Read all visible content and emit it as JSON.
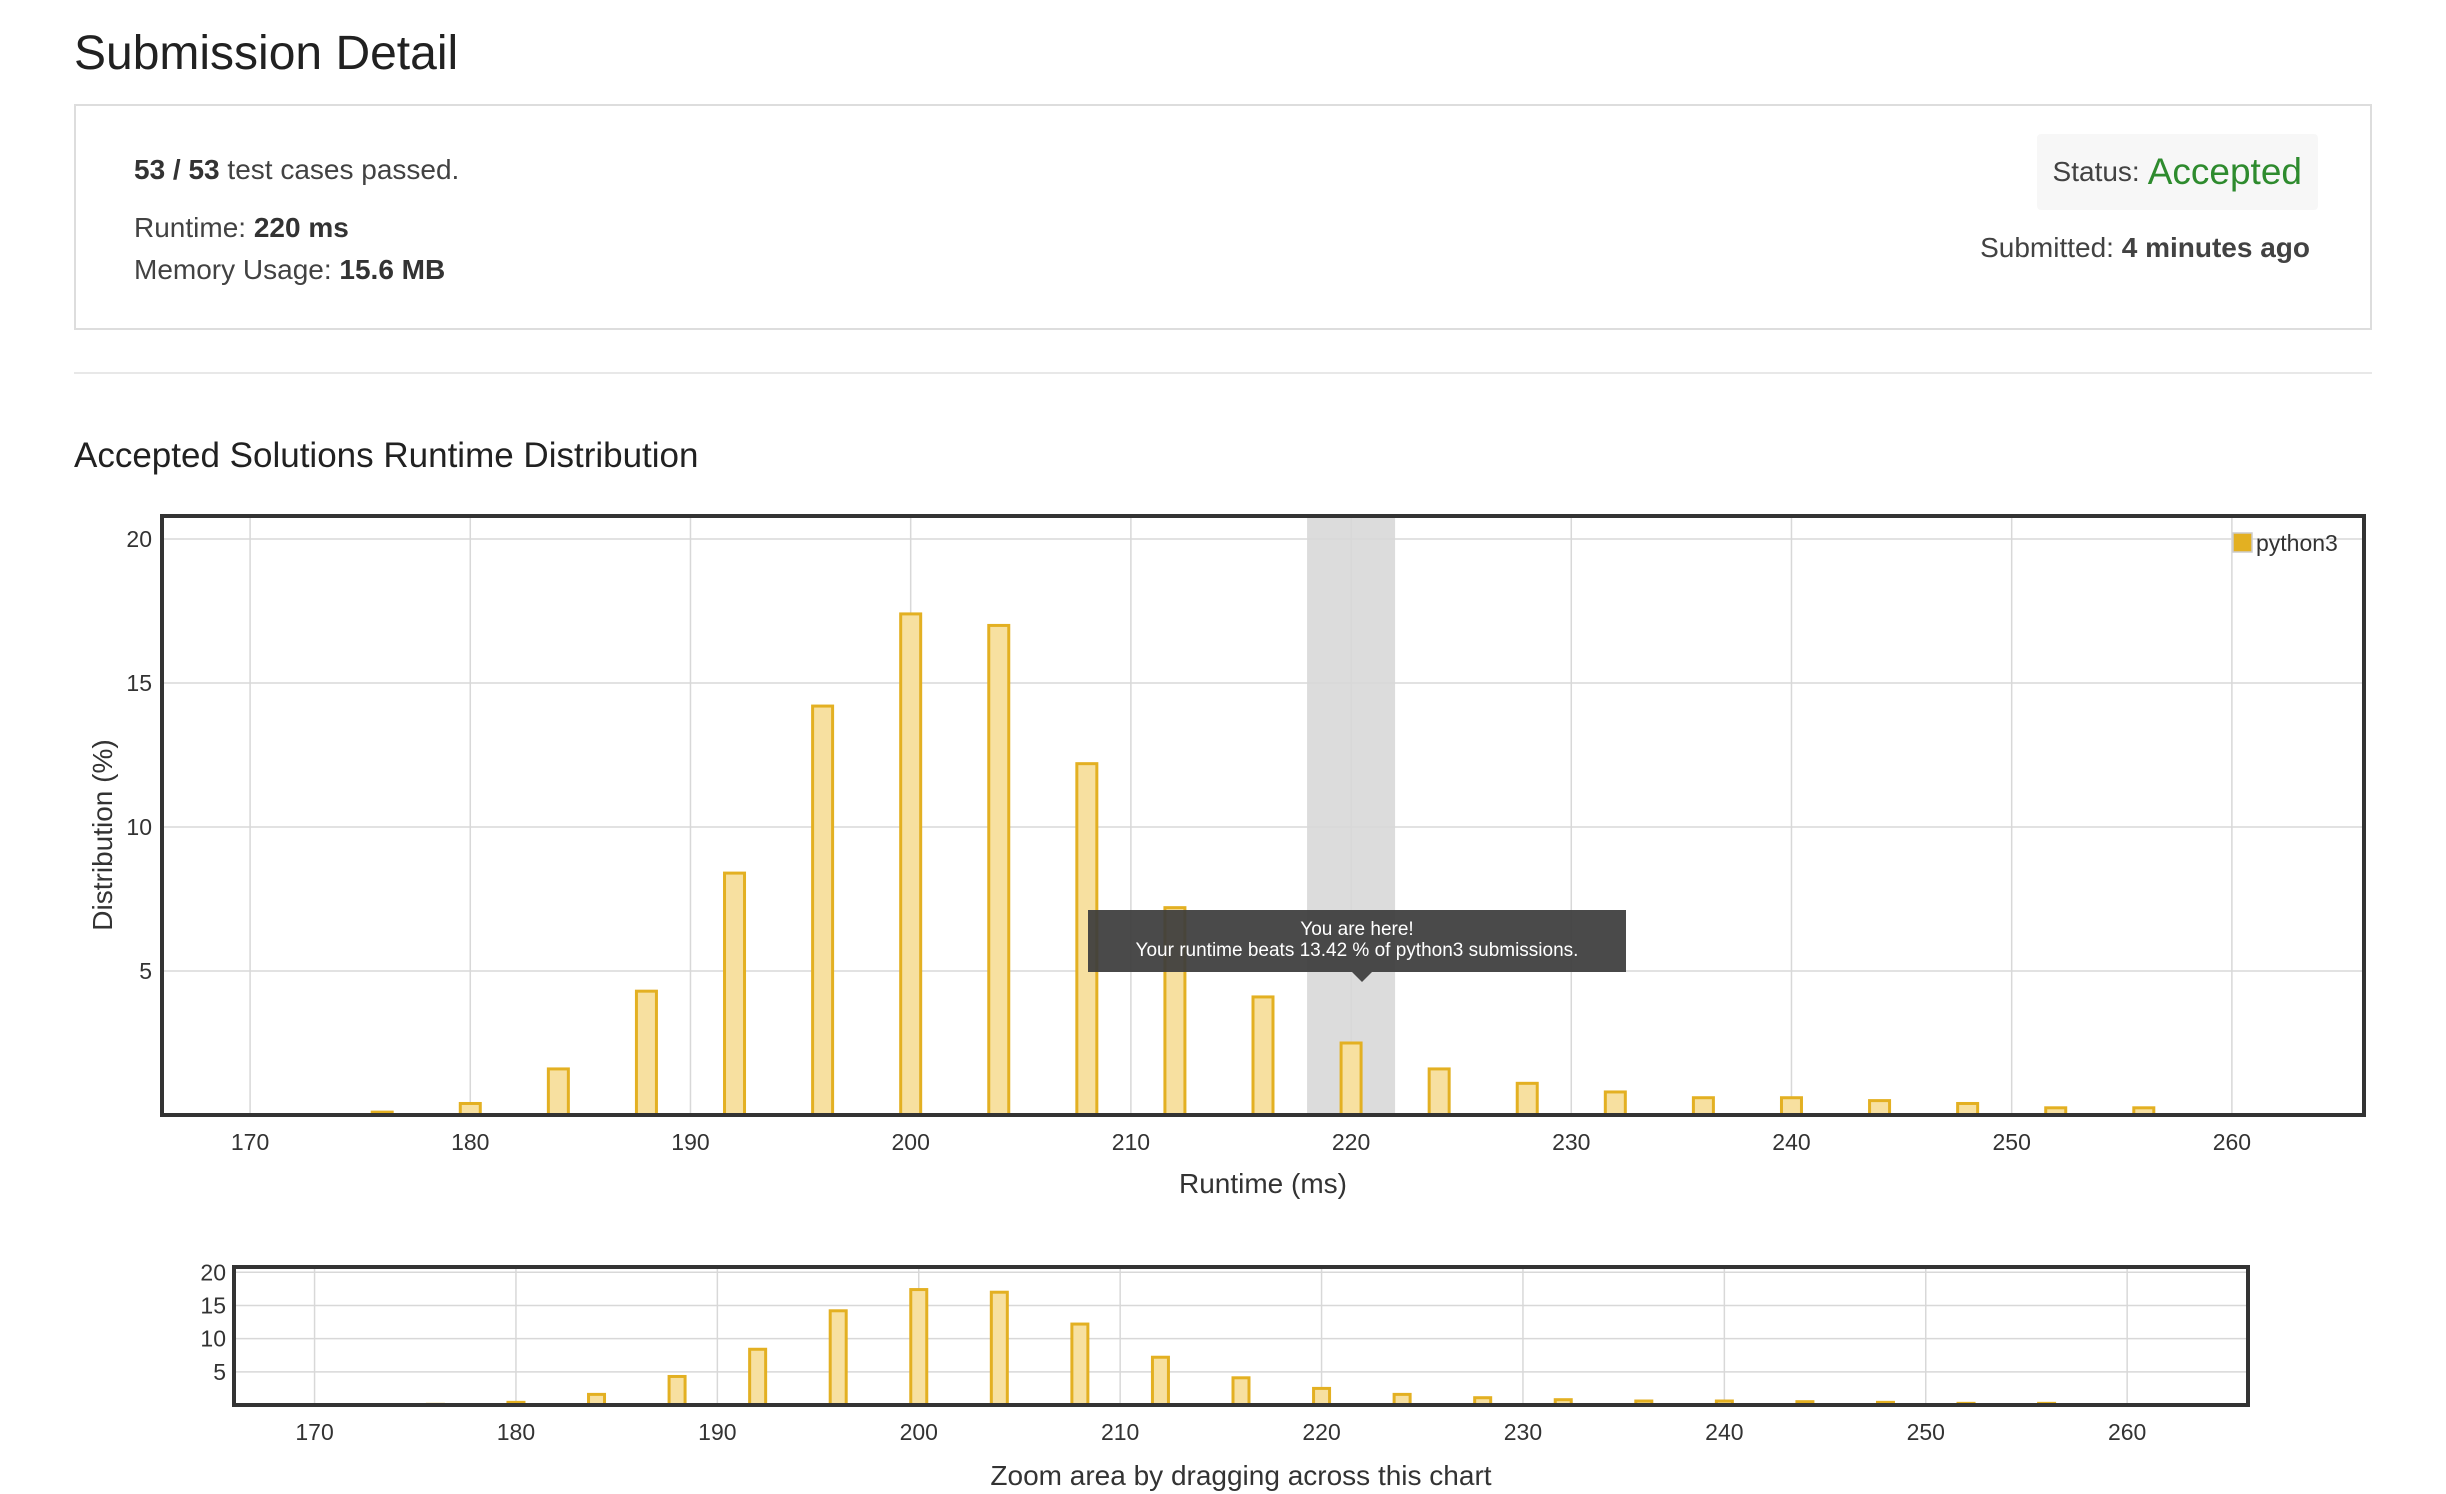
{
  "header": {
    "title": "Submission Detail"
  },
  "result": {
    "passed": "53 / 53",
    "passed_suffix": "test cases passed.",
    "runtime_label": "Runtime:",
    "runtime_value": "220 ms",
    "memory_label": "Memory Usage:",
    "memory_value": "15.6 MB",
    "status_label": "Status:",
    "status_value": "Accepted",
    "submitted_label": "Submitted:",
    "submitted_value": "4 minutes ago"
  },
  "section": {
    "title": "Accepted Solutions Runtime Distribution"
  },
  "tooltip": {
    "line1": "You are here!",
    "line2": "Your runtime beats 13.42 % of python3 submissions."
  },
  "zoom_hint": "Zoom area by dragging across this chart",
  "colors": {
    "bar_fill": "#f7e0a0",
    "bar_stroke": "#e3b022",
    "accepted": "#2e8b2e",
    "highlight": "#dcdcdc"
  },
  "chart_data": [
    {
      "type": "bar",
      "series": [
        {
          "name": "python3",
          "x": [
            176,
            180,
            184,
            188,
            192,
            196,
            200,
            204,
            208,
            212,
            216,
            220,
            224,
            228,
            232,
            236,
            240,
            244,
            248,
            252,
            256
          ],
          "values": [
            0.1,
            0.4,
            1.6,
            4.3,
            8.4,
            14.2,
            17.4,
            17.0,
            12.2,
            7.2,
            4.1,
            2.5,
            1.6,
            1.1,
            0.8,
            0.6,
            0.6,
            0.5,
            0.4,
            0.25,
            0.25
          ]
        }
      ],
      "xlabel": "Runtime (ms)",
      "ylabel": "Distribution (%)",
      "xlim": [
        166,
        266
      ],
      "ylim": [
        0,
        20.8
      ],
      "xticks": [
        170,
        180,
        190,
        200,
        210,
        220,
        230,
        240,
        250,
        260
      ],
      "yticks": [
        5,
        10,
        15,
        20
      ],
      "highlight_x": 220,
      "legend": "top-right",
      "grid": true
    },
    {
      "type": "bar",
      "series": [
        {
          "name": "python3",
          "x": [
            176,
            180,
            184,
            188,
            192,
            196,
            200,
            204,
            208,
            212,
            216,
            220,
            224,
            228,
            232,
            236,
            240,
            244,
            248,
            252,
            256
          ],
          "values": [
            0.1,
            0.4,
            1.6,
            4.3,
            8.4,
            14.2,
            17.4,
            17.0,
            12.2,
            7.2,
            4.1,
            2.5,
            1.6,
            1.1,
            0.8,
            0.6,
            0.6,
            0.5,
            0.4,
            0.25,
            0.25
          ]
        }
      ],
      "xlim": [
        166,
        266
      ],
      "ylim": [
        0,
        20.8
      ],
      "xticks": [
        170,
        180,
        190,
        200,
        210,
        220,
        230,
        240,
        250,
        260
      ],
      "yticks": [
        5,
        10,
        15,
        20
      ],
      "grid": true
    }
  ]
}
